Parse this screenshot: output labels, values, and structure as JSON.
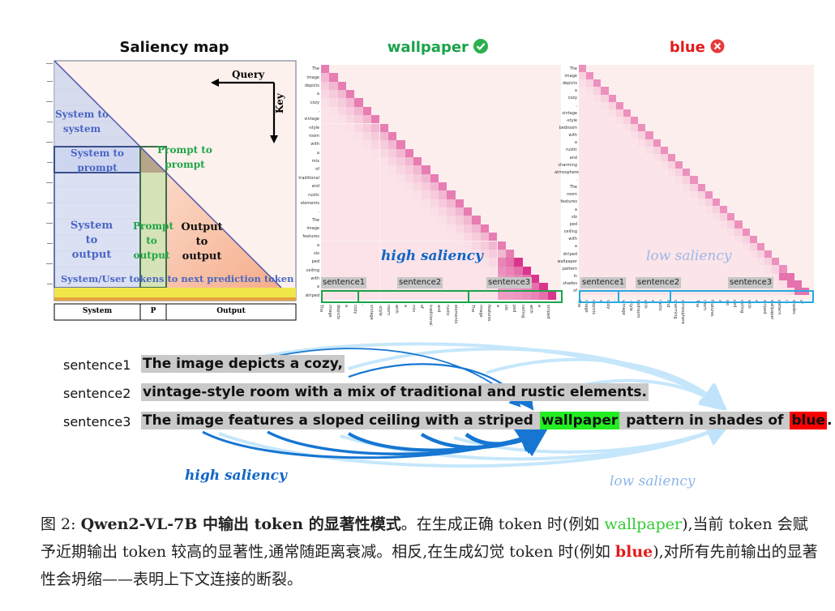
{
  "panels": {
    "saliency_title": "Saliency map",
    "wallpaper_title": "wallpaper",
    "blue_title": "blue",
    "check_icon": "check-circle-icon",
    "cross_icon": "x-circle-icon"
  },
  "saliency_map": {
    "query_label": "Query",
    "key_label": "Key",
    "regions": {
      "sys_sys": "System to system",
      "sys_prompt": "System to prompt",
      "prompt_prompt": "Prompt to prompt",
      "sys_output": "System to output",
      "prompt_output": "Prompt to output",
      "output_output": "Output to output",
      "banner": "System/User tokens to next prediction token"
    },
    "bottom_labels": [
      "System",
      "P",
      "Output"
    ]
  },
  "wallpaper_map": {
    "row_tokens": [
      "The",
      "image",
      "depicts",
      "a",
      "cozy",
      ",",
      "vintage",
      "-style",
      "room",
      "with",
      "a",
      "mix",
      "of",
      "traditional",
      "and",
      "rustic",
      "elements",
      ".",
      "The",
      "image",
      "features",
      "a",
      "slo",
      "ped",
      "ceiling",
      "with",
      "a",
      "striped"
    ],
    "col_tokens": [
      "The",
      "image",
      "depicts",
      "a",
      "cozy",
      ",",
      "vintage",
      "-style",
      "room",
      "with",
      "a",
      "mix",
      "of",
      "traditional",
      "and",
      "rustic",
      "elements",
      ".",
      "The",
      "image",
      "features",
      "a",
      "slo",
      "ped",
      "ceiling",
      "with",
      "a",
      "striped"
    ],
    "sentence_labels": [
      "sentence1",
      "sentence2",
      "sentence3"
    ],
    "overlay": "high saliency",
    "accent": "#1aa34a"
  },
  "blue_map": {
    "row_tokens": [
      "The",
      "image",
      "depicts",
      "a",
      "cozy",
      ",",
      "vintage",
      "-style",
      "bedroom",
      "with",
      "a",
      "rustic",
      "and",
      "charming",
      "atmosphere",
      ".",
      "The",
      "room",
      "features",
      "a",
      "slo",
      "ped",
      "ceiling",
      "with",
      "a",
      "striped",
      "wallpaper",
      "pattern",
      "in",
      "shades",
      "of"
    ],
    "col_tokens": [
      "The",
      "image",
      "depicts",
      "a",
      "cozy",
      ",",
      "vintage",
      "-style",
      "bedroom",
      "with",
      "a",
      "rustic",
      "and",
      "charming",
      "atmosphere",
      ".",
      "The",
      "room",
      "features",
      "a",
      "slo",
      "ped",
      "ceiling",
      "with",
      "a",
      "striped",
      "wallpaper",
      "pattern",
      "in",
      "shades",
      "of"
    ],
    "sentence_labels": [
      "sentence1",
      "sentence2",
      "sentence3"
    ],
    "overlay": "low saliency",
    "accent": "#27a9e1"
  },
  "example": {
    "labels": [
      "sentence1",
      "sentence2",
      "sentence3"
    ],
    "sentence1": "The image depicts a cozy,",
    "sentence2": "vintage-style room with a mix of traditional and rustic elements.",
    "sentence3_pre": "The image features a sloped ceiling with a striped ",
    "word_good": "wallpaper",
    "sentence3_mid": " pattern in shades of ",
    "word_bad": "blue",
    "sentence3_end": ".",
    "high_label": "high saliency",
    "low_label": "low saliency",
    "colors": {
      "good": "#22ee22",
      "bad": "#ff0000",
      "high": "#1166c6",
      "low": "#8fb6e8"
    }
  },
  "caption": {
    "fig": "图 2:",
    "bold": "Qwen2-VL-7B 中输出 token 的显著性模式",
    "t1": "。在生成正确 token 时(例如 ",
    "good": "wallpaper",
    "t2": "),当前 token 会赋予近期输出 token 较高的显著性,通常随距离衰减。相反,在生成幻觉 token 时(例如 ",
    "bad": "blue",
    "t3": "),对所有先前输出的显著性会坍缩——表明上下文连接的断裂。"
  }
}
